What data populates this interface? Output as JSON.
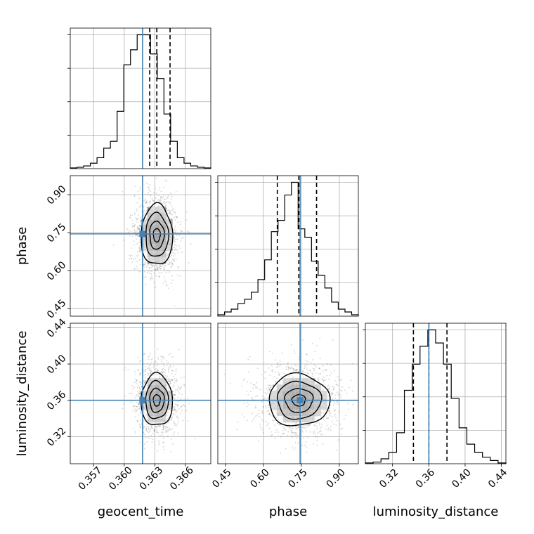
{
  "chart_data": {
    "type": "corner",
    "parameters": [
      "geocent_time",
      "phase",
      "luminosity_distance"
    ],
    "truths": [
      0.3618,
      0.745,
      0.36
    ],
    "truth_color": "#4682b4",
    "ranges": [
      [
        0.3547,
        0.3685
      ],
      [
        0.42,
        0.975
      ],
      [
        0.29,
        0.445
      ]
    ],
    "ticks": [
      {
        "values": [
          0.357,
          0.36,
          0.363,
          0.366
        ],
        "labels": [
          "0.357",
          "0.360",
          "0.363",
          "0.366"
        ]
      },
      {
        "values": [
          0.45,
          0.6,
          0.75,
          0.9
        ],
        "labels": [
          "0.45",
          "0.60",
          "0.75",
          "0.90"
        ]
      },
      {
        "values": [
          0.32,
          0.36,
          0.4,
          0.44
        ],
        "labels": [
          "0.32",
          "0.36",
          "0.40",
          "0.44"
        ]
      }
    ],
    "quantile_lines": [
      [
        0.3625,
        0.3632,
        0.3645
      ],
      [
        0.655,
        0.74,
        0.81
      ],
      [
        0.343,
        0.36,
        0.38
      ]
    ],
    "histograms": [
      {
        "counts": [
          0.5,
          1,
          2,
          4,
          8,
          15,
          20,
          42,
          76,
          87,
          98,
          98,
          84,
          66,
          40,
          20,
          8,
          4,
          2,
          1,
          0.5
        ]
      },
      {
        "counts": [
          1,
          3,
          5,
          9,
          12,
          17,
          26,
          40,
          60,
          68,
          86,
          95,
          62,
          56,
          39,
          29,
          20,
          10,
          5,
          3,
          1
        ]
      },
      {
        "counts": [
          0.5,
          1,
          3,
          7,
          19,
          45,
          61,
          72,
          82,
          74,
          61,
          40,
          22,
          12,
          7,
          4,
          2,
          0.5
        ]
      }
    ],
    "grid": true
  }
}
